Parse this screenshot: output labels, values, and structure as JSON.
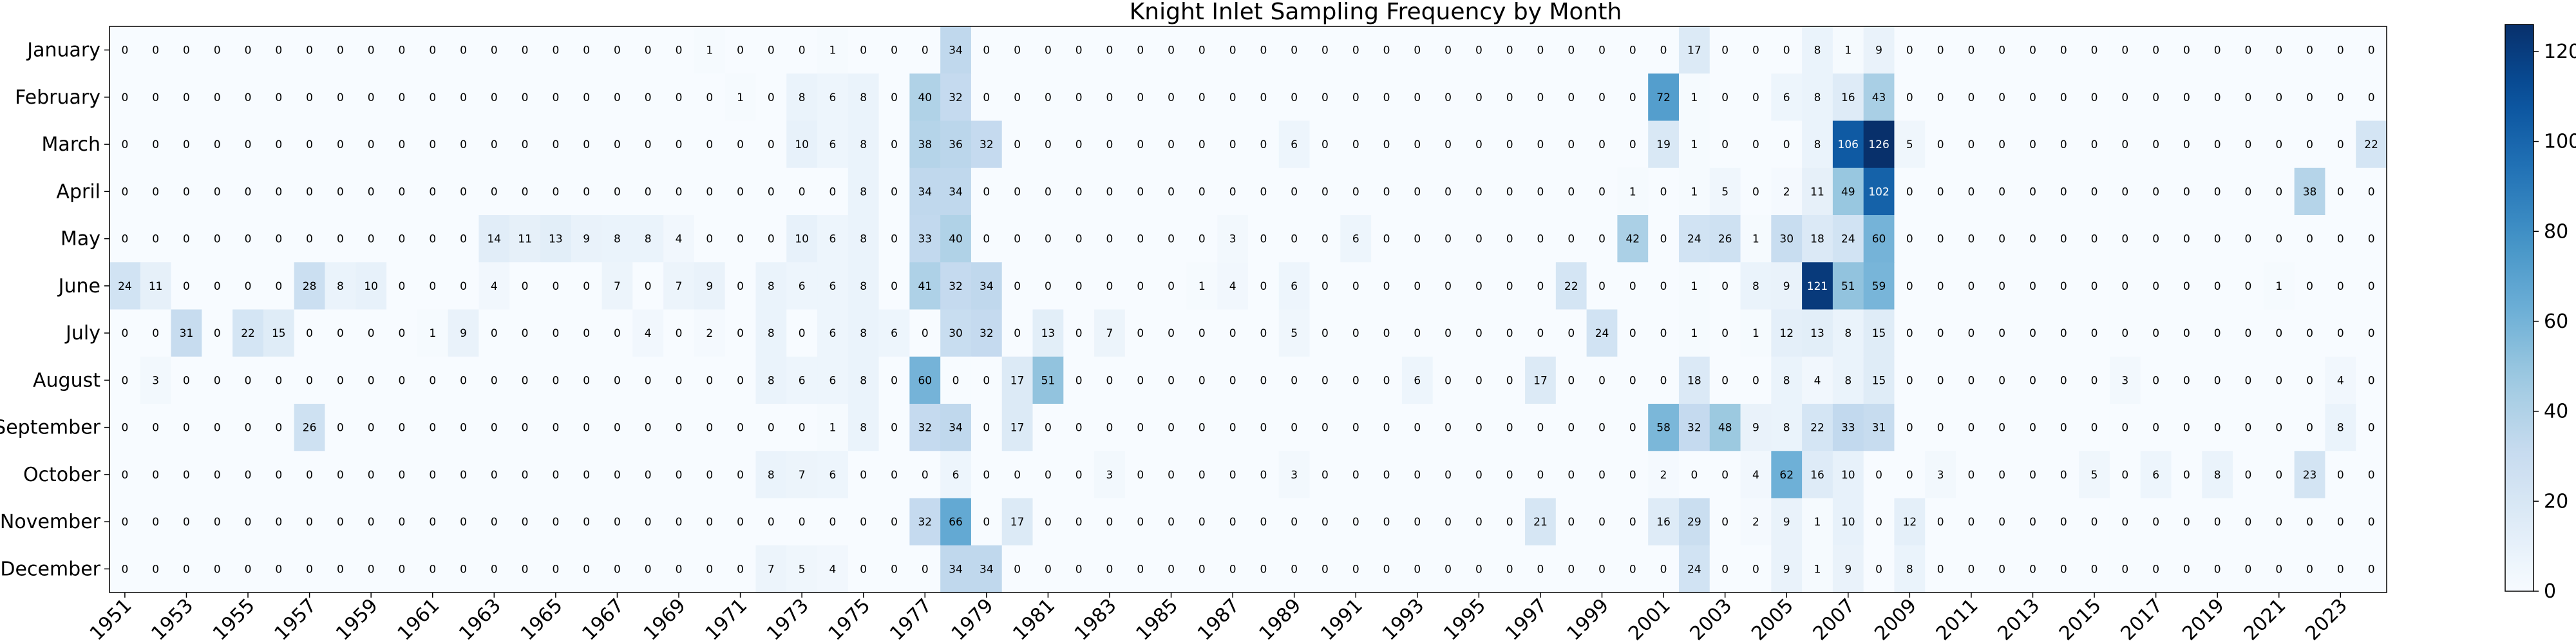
{
  "chart_data": {
    "type": "heatmap",
    "title": "Knight Inlet Sampling Frequency by Month",
    "xlabel": "",
    "ylabel": "",
    "colormap": "Blues",
    "vmin": 0,
    "vmax": 126,
    "colorbar_ticks": [
      0,
      20,
      40,
      60,
      80,
      100,
      120
    ],
    "x_tick_labels": [
      "1951",
      "1953",
      "1955",
      "1957",
      "1959",
      "1961",
      "1963",
      "1965",
      "1967",
      "1969",
      "1971",
      "1973",
      "1975",
      "1977",
      "1979",
      "1981",
      "1983",
      "1985",
      "1987",
      "1989",
      "1991",
      "1993",
      "1995",
      "1997",
      "1999",
      "2001",
      "2003",
      "2005",
      "2007",
      "2009",
      "2011",
      "2013",
      "2015",
      "2017",
      "2019",
      "2021",
      "2023"
    ],
    "x": [
      1951,
      1952,
      1953,
      1954,
      1955,
      1956,
      1957,
      1958,
      1959,
      1960,
      1961,
      1962,
      1963,
      1964,
      1965,
      1966,
      1967,
      1968,
      1969,
      1970,
      1971,
      1972,
      1973,
      1974,
      1975,
      1976,
      1977,
      1978,
      1979,
      1980,
      1981,
      1982,
      1983,
      1984,
      1985,
      1986,
      1987,
      1988,
      1989,
      1990,
      1991,
      1992,
      1993,
      1994,
      1995,
      1996,
      1997,
      1998,
      1999,
      2000,
      2001,
      2002,
      2003,
      2004,
      2005,
      2006,
      2007,
      2008,
      2009,
      2010,
      2011,
      2012,
      2013,
      2014,
      2015,
      2016,
      2017,
      2018,
      2019,
      2020,
      2021,
      2022,
      2023,
      2024
    ],
    "y": [
      "January",
      "February",
      "March",
      "April",
      "May",
      "June",
      "July",
      "August",
      "September",
      "October",
      "November",
      "December"
    ],
    "values": [
      [
        0,
        0,
        0,
        0,
        0,
        0,
        0,
        0,
        0,
        0,
        0,
        0,
        0,
        0,
        0,
        0,
        0,
        0,
        0,
        1,
        0,
        0,
        0,
        1,
        0,
        0,
        0,
        34,
        0,
        0,
        0,
        0,
        0,
        0,
        0,
        0,
        0,
        0,
        0,
        0,
        0,
        0,
        0,
        0,
        0,
        0,
        0,
        0,
        0,
        0,
        0,
        17,
        0,
        0,
        0,
        8,
        1,
        9,
        0,
        0,
        0,
        0,
        0,
        0,
        0,
        0,
        0,
        0,
        0,
        0,
        0,
        0,
        0,
        0
      ],
      [
        0,
        0,
        0,
        0,
        0,
        0,
        0,
        0,
        0,
        0,
        0,
        0,
        0,
        0,
        0,
        0,
        0,
        0,
        0,
        0,
        1,
        0,
        8,
        6,
        8,
        0,
        40,
        32,
        0,
        0,
        0,
        0,
        0,
        0,
        0,
        0,
        0,
        0,
        0,
        0,
        0,
        0,
        0,
        0,
        0,
        0,
        0,
        0,
        0,
        0,
        72,
        1,
        0,
        0,
        6,
        8,
        16,
        43,
        0,
        0,
        0,
        0,
        0,
        0,
        0,
        0,
        0,
        0,
        0,
        0,
        0,
        0,
        0,
        0
      ],
      [
        0,
        0,
        0,
        0,
        0,
        0,
        0,
        0,
        0,
        0,
        0,
        0,
        0,
        0,
        0,
        0,
        0,
        0,
        0,
        0,
        0,
        0,
        10,
        6,
        8,
        0,
        38,
        36,
        32,
        0,
        0,
        0,
        0,
        0,
        0,
        0,
        0,
        0,
        6,
        0,
        0,
        0,
        0,
        0,
        0,
        0,
        0,
        0,
        0,
        0,
        19,
        1,
        0,
        0,
        0,
        8,
        106,
        126,
        5,
        0,
        0,
        0,
        0,
        0,
        0,
        0,
        0,
        0,
        0,
        0,
        0,
        0,
        0,
        22
      ],
      [
        0,
        0,
        0,
        0,
        0,
        0,
        0,
        0,
        0,
        0,
        0,
        0,
        0,
        0,
        0,
        0,
        0,
        0,
        0,
        0,
        0,
        0,
        0,
        0,
        8,
        0,
        34,
        34,
        0,
        0,
        0,
        0,
        0,
        0,
        0,
        0,
        0,
        0,
        0,
        0,
        0,
        0,
        0,
        0,
        0,
        0,
        0,
        0,
        0,
        1,
        0,
        1,
        5,
        0,
        2,
        11,
        49,
        102,
        0,
        0,
        0,
        0,
        0,
        0,
        0,
        0,
        0,
        0,
        0,
        0,
        0,
        38,
        0,
        0
      ],
      [
        0,
        0,
        0,
        0,
        0,
        0,
        0,
        0,
        0,
        0,
        0,
        0,
        14,
        11,
        13,
        9,
        8,
        8,
        4,
        0,
        0,
        0,
        10,
        6,
        8,
        0,
        33,
        40,
        0,
        0,
        0,
        0,
        0,
        0,
        0,
        0,
        3,
        0,
        0,
        0,
        6,
        0,
        0,
        0,
        0,
        0,
        0,
        0,
        0,
        42,
        0,
        24,
        26,
        1,
        30,
        18,
        24,
        60,
        0,
        0,
        0,
        0,
        0,
        0,
        0,
        0,
        0,
        0,
        0,
        0,
        0,
        0,
        0,
        0
      ],
      [
        24,
        11,
        0,
        0,
        0,
        0,
        28,
        8,
        10,
        0,
        0,
        0,
        4,
        0,
        0,
        0,
        7,
        0,
        7,
        9,
        0,
        8,
        6,
        6,
        8,
        0,
        41,
        32,
        34,
        0,
        0,
        0,
        0,
        0,
        0,
        1,
        4,
        0,
        6,
        0,
        0,
        0,
        0,
        0,
        0,
        0,
        0,
        22,
        0,
        0,
        0,
        1,
        0,
        8,
        9,
        121,
        51,
        59,
        0,
        0,
        0,
        0,
        0,
        0,
        0,
        0,
        0,
        0,
        0,
        0,
        1,
        0,
        0,
        0
      ],
      [
        0,
        0,
        31,
        0,
        22,
        15,
        0,
        0,
        0,
        0,
        1,
        9,
        0,
        0,
        0,
        0,
        0,
        4,
        0,
        2,
        0,
        8,
        0,
        6,
        8,
        6,
        0,
        30,
        32,
        0,
        13,
        0,
        7,
        0,
        0,
        0,
        0,
        0,
        5,
        0,
        0,
        0,
        0,
        0,
        0,
        0,
        0,
        0,
        24,
        0,
        0,
        1,
        0,
        1,
        12,
        13,
        8,
        15,
        0,
        0,
        0,
        0,
        0,
        0,
        0,
        0,
        0,
        0,
        0,
        0,
        0,
        0,
        0,
        0
      ],
      [
        0,
        3,
        0,
        0,
        0,
        0,
        0,
        0,
        0,
        0,
        0,
        0,
        0,
        0,
        0,
        0,
        0,
        0,
        0,
        0,
        0,
        8,
        6,
        6,
        8,
        0,
        60,
        0,
        0,
        17,
        51,
        0,
        0,
        0,
        0,
        0,
        0,
        0,
        0,
        0,
        0,
        0,
        6,
        0,
        0,
        0,
        17,
        0,
        0,
        0,
        0,
        18,
        0,
        0,
        8,
        4,
        8,
        15,
        0,
        0,
        0,
        0,
        0,
        0,
        0,
        3,
        0,
        0,
        0,
        0,
        0,
        0,
        4,
        0
      ],
      [
        0,
        0,
        0,
        0,
        0,
        0,
        26,
        0,
        0,
        0,
        0,
        0,
        0,
        0,
        0,
        0,
        0,
        0,
        0,
        0,
        0,
        0,
        0,
        1,
        8,
        0,
        32,
        34,
        0,
        17,
        0,
        0,
        0,
        0,
        0,
        0,
        0,
        0,
        0,
        0,
        0,
        0,
        0,
        0,
        0,
        0,
        0,
        0,
        0,
        0,
        58,
        32,
        48,
        9,
        8,
        22,
        33,
        31,
        0,
        0,
        0,
        0,
        0,
        0,
        0,
        0,
        0,
        0,
        0,
        0,
        0,
        0,
        8,
        0
      ],
      [
        0,
        0,
        0,
        0,
        0,
        0,
        0,
        0,
        0,
        0,
        0,
        0,
        0,
        0,
        0,
        0,
        0,
        0,
        0,
        0,
        0,
        8,
        7,
        6,
        0,
        0,
        0,
        6,
        0,
        0,
        0,
        0,
        3,
        0,
        0,
        0,
        0,
        0,
        3,
        0,
        0,
        0,
        0,
        0,
        0,
        0,
        0,
        0,
        0,
        0,
        2,
        0,
        0,
        4,
        62,
        16,
        10,
        0,
        0,
        3,
        0,
        0,
        0,
        0,
        5,
        0,
        6,
        0,
        8,
        0,
        0,
        23,
        0,
        0
      ],
      [
        0,
        0,
        0,
        0,
        0,
        0,
        0,
        0,
        0,
        0,
        0,
        0,
        0,
        0,
        0,
        0,
        0,
        0,
        0,
        0,
        0,
        0,
        0,
        0,
        0,
        0,
        32,
        66,
        0,
        17,
        0,
        0,
        0,
        0,
        0,
        0,
        0,
        0,
        0,
        0,
        0,
        0,
        0,
        0,
        0,
        0,
        21,
        0,
        0,
        0,
        16,
        29,
        0,
        2,
        9,
        1,
        10,
        0,
        12,
        0,
        0,
        0,
        0,
        0,
        0,
        0,
        0,
        0,
        0,
        0,
        0,
        0,
        0,
        0
      ],
      [
        0,
        0,
        0,
        0,
        0,
        0,
        0,
        0,
        0,
        0,
        0,
        0,
        0,
        0,
        0,
        0,
        0,
        0,
        0,
        0,
        0,
        7,
        5,
        4,
        0,
        0,
        0,
        34,
        34,
        0,
        0,
        0,
        0,
        0,
        0,
        0,
        0,
        0,
        0,
        0,
        0,
        0,
        0,
        0,
        0,
        0,
        0,
        0,
        0,
        0,
        0,
        24,
        0,
        0,
        9,
        1,
        9,
        0,
        8,
        0,
        0,
        0,
        0,
        0,
        0,
        0,
        0,
        0,
        0,
        0,
        0,
        0,
        0,
        0
      ]
    ]
  }
}
